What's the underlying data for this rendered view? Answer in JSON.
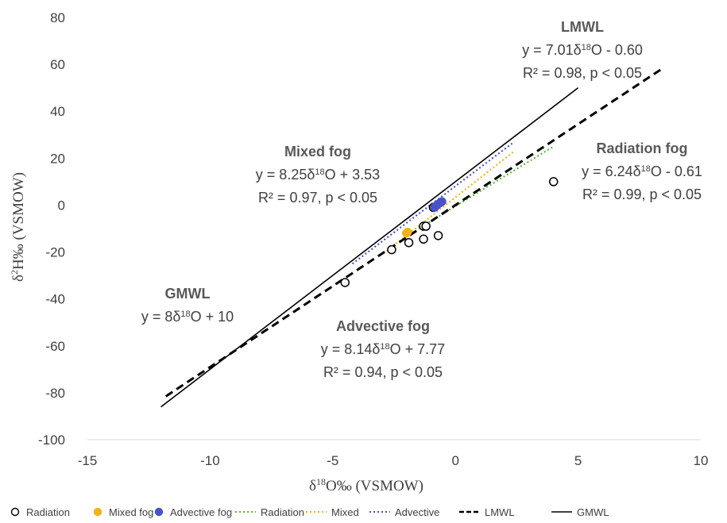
{
  "chart_data": {
    "type": "scatter",
    "xlabel": "δ18O‰ (VSMOW)",
    "ylabel": "δ2H‰ (VSMOW)",
    "xlim": [
      -15,
      10
    ],
    "ylim": [
      -100,
      80
    ],
    "xticks": [
      -15,
      -10,
      -5,
      0,
      5,
      10
    ],
    "yticks": [
      -100,
      -80,
      -60,
      -40,
      -20,
      0,
      20,
      40,
      60,
      80
    ],
    "grid": false,
    "legend_position": "bottom",
    "scatter_series": [
      {
        "name": "Radiation",
        "marker": "open-circle",
        "color": "#000000",
        "points": [
          [
            -4.5,
            -33
          ],
          [
            -2.6,
            -19
          ],
          [
            -1.9,
            -16
          ],
          [
            -1.3,
            -14.5
          ],
          [
            -1.3,
            -9
          ],
          [
            -1.2,
            -9
          ],
          [
            -0.7,
            -13
          ],
          [
            -0.9,
            -1
          ],
          [
            4,
            10
          ]
        ]
      },
      {
        "name": "Mixed fog",
        "marker": "filled-circle",
        "color": "#f2b21c",
        "points": [
          [
            -2.0,
            -12
          ],
          [
            -1.95,
            -11.5
          ],
          [
            -0.8,
            -0.5
          ]
        ]
      },
      {
        "name": "Advective fog",
        "marker": "filled-circle",
        "color": "#4a52c8",
        "points": [
          [
            -0.85,
            -1
          ],
          [
            -0.75,
            0
          ],
          [
            -0.65,
            0.8
          ],
          [
            -0.55,
            1.5
          ]
        ]
      }
    ],
    "line_series": [
      {
        "name": "Radiation",
        "style": "dotted",
        "color": "#59b73a",
        "width": 2.2,
        "x": [
          -1.5,
          4
        ],
        "y": [
          -10,
          25
        ]
      },
      {
        "name": "Mixed",
        "style": "dotted",
        "color": "#f2b21c",
        "width": 2.2,
        "x": [
          -2.8,
          2.4
        ],
        "y": [
          -19.6,
          23
        ]
      },
      {
        "name": "Advective",
        "style": "dotted",
        "color": "#4a52c8",
        "width": 2.2,
        "x": [
          -4.2,
          2.4
        ],
        "y": [
          -25,
          27
        ]
      },
      {
        "name": "LMWL",
        "style": "dashed",
        "color": "#000000",
        "width": 3,
        "x": [
          -11.8,
          8.4
        ],
        "y": [
          -81.5,
          58
        ]
      },
      {
        "name": "GMWL",
        "style": "solid",
        "color": "#000000",
        "width": 1.6,
        "x": [
          -12,
          5
        ],
        "y": [
          -86,
          50
        ]
      }
    ],
    "annotations": [
      {
        "id": "lmwl",
        "title": "LMWL",
        "lines": [
          "y = 7.01δ18O - 0.60",
          "R² = 0.98, p < 0.05"
        ]
      },
      {
        "id": "mixed",
        "title": "Mixed fog",
        "lines": [
          "y = 8.25δ18O + 3.53",
          "R² = 0.97, p < 0.05"
        ]
      },
      {
        "id": "radiation",
        "title": "Radiation fog",
        "lines": [
          "y = 6.24δ18O - 0.61",
          "R² = 0.99, p < 0.05"
        ]
      },
      {
        "id": "gmwl",
        "title": "GMWL",
        "lines": [
          "y = 8δ18O + 10"
        ]
      },
      {
        "id": "advective",
        "title": "Advective fog",
        "lines": [
          "y = 8.14δ18O + 7.77",
          "R² = 0.94, p < 0.05"
        ]
      }
    ],
    "legend": [
      {
        "label": "Radiation",
        "kind": "open-circle",
        "color": "#000000"
      },
      {
        "label": "Mixed fog",
        "kind": "filled-circle",
        "color": "#f2b21c"
      },
      {
        "label": "Advective fog",
        "kind": "filled-circle",
        "color": "#4a52c8"
      },
      {
        "label": "Radiation",
        "kind": "dotted",
        "color": "#59b73a"
      },
      {
        "label": "Mixed",
        "kind": "dotted",
        "color": "#f2b21c"
      },
      {
        "label": "Advective",
        "kind": "dotted",
        "color": "#4a52c8"
      },
      {
        "label": "LMWL",
        "kind": "dashed",
        "color": "#000000"
      },
      {
        "label": "GMWL",
        "kind": "solid",
        "color": "#000000"
      }
    ]
  }
}
